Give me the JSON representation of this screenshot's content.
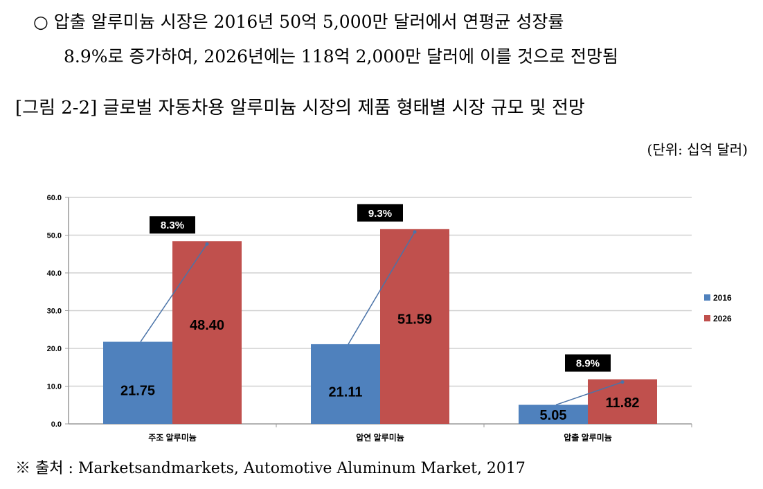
{
  "text": {
    "line1": "○  압출 알루미늄 시장은 2016년 50억 5,000만 달러에서 연평균 성장률",
    "line2": "8.9%로 증가하여, 2026년에는 118억 2,000만 달러에 이를 것으로 전망됨",
    "caption": "[그림 2-2] 글로벌 자동차용 알루미늄 시장의 제품 형태별 시장 규모 및 전망",
    "unit": "(단위: 십억 달러)",
    "source": "※ 출처 : Marketsandmarkets, Automotive Aluminum Market, 2017"
  },
  "chart_data": {
    "type": "bar",
    "title": "",
    "xlabel": "",
    "ylabel": "",
    "ylim": [
      0,
      60
    ],
    "yticks": [
      "0.0",
      "10.0",
      "20.0",
      "30.0",
      "40.0",
      "50.0",
      "60.0"
    ],
    "grid": true,
    "legend_position": "right",
    "categories": [
      "주조 알루미늄",
      "압연 알루미늄",
      "압출 알루미늄"
    ],
    "series": [
      {
        "name": "2016",
        "color": "#4f81bd",
        "values": [
          21.75,
          21.11,
          5.05
        ],
        "labels": [
          "21.75",
          "21.11",
          "5.05"
        ]
      },
      {
        "name": "2026",
        "color": "#c0504d",
        "values": [
          48.4,
          51.59,
          11.82
        ],
        "labels": [
          "48.40",
          "51.59",
          "11.82"
        ]
      }
    ],
    "growth_annotations": [
      "8.3%",
      "9.3%",
      "8.9%"
    ]
  }
}
